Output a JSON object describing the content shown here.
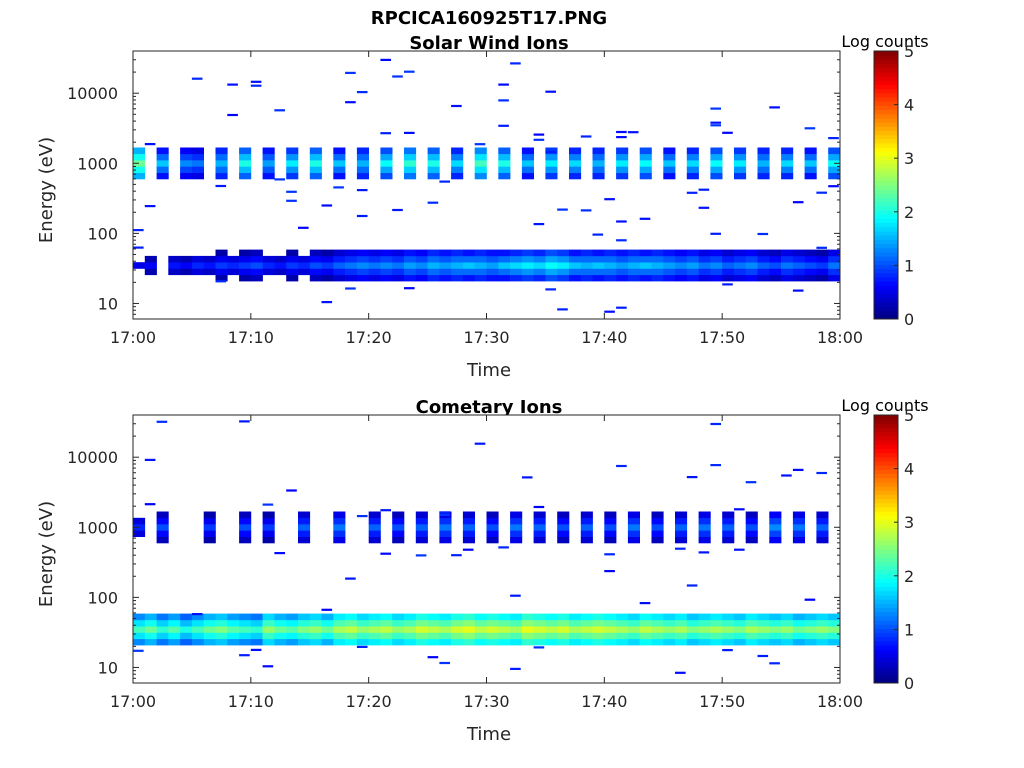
{
  "figure": {
    "filename": "RPCICA160925T17.PNG"
  },
  "colorbar": {
    "label": "Log counts",
    "ticks": [
      "0",
      "1",
      "2",
      "3",
      "4",
      "5"
    ],
    "range": [
      0,
      5
    ],
    "colormap": "jet"
  },
  "chart_data": [
    {
      "type": "heatmap",
      "title": "Solar Wind Ions",
      "xlabel": "Time",
      "ylabel": "Energy (eV)",
      "xticks": [
        "17:00",
        "17:10",
        "17:20",
        "17:30",
        "17:40",
        "17:50",
        "18:00"
      ],
      "xlim": [
        "17:00",
        "18:00"
      ],
      "yscale": "log",
      "ylim": [
        6,
        40000
      ],
      "yticks": [
        "10",
        "100",
        "1000",
        "10000"
      ],
      "time_resolution_s": 60,
      "bands": [
        {
          "energy_eV": 1000,
          "peak_log_counts": [
            2.4,
            0,
            1.6,
            0,
            1.3,
            1.2,
            0,
            1.5,
            0,
            2.0,
            0,
            1.4,
            0,
            1.8,
            0,
            2.0,
            0,
            1.6,
            0,
            1.5,
            0,
            1.9,
            0,
            2.1,
            0,
            2.0,
            0,
            1.7,
            0,
            2.2,
            0,
            2.0,
            0,
            1.6,
            0,
            1.8,
            0,
            1.7,
            0,
            1.5,
            0,
            1.8,
            0,
            1.9,
            0,
            1.6,
            0,
            1.7,
            0,
            1.9,
            0,
            1.8,
            0,
            1.5,
            0,
            1.7,
            0,
            1.6,
            0,
            1.9
          ]
        },
        {
          "energy_eV": 35,
          "peak_log_counts": [
            0.5,
            0.6,
            0,
            0.7,
            0.6,
            0.8,
            0.7,
            0.9,
            0.8,
            0.9,
            1.0,
            0.8,
            0.7,
            0.9,
            0.8,
            1.0,
            0.9,
            1.1,
            1.2,
            1.3,
            1.2,
            1.3,
            1.2,
            1.4,
            1.3,
            1.5,
            1.4,
            1.5,
            1.6,
            1.5,
            1.4,
            1.6,
            1.7,
            1.8,
            1.7,
            1.9,
            1.8,
            1.6,
            1.5,
            1.6,
            1.5,
            1.4,
            1.5,
            1.6,
            1.5,
            1.4,
            1.3,
            1.4,
            1.2,
            1.3,
            1.1,
            1.2,
            1.3,
            1.1,
            1.0,
            1.2,
            1.1,
            1.0,
            0.9,
            1.2
          ]
        }
      ],
      "scatter_counts_level": 0.6
    },
    {
      "type": "heatmap",
      "title": "Cometary Ions",
      "xlabel": "Time",
      "ylabel": "Energy (eV)",
      "xticks": [
        "17:00",
        "17:10",
        "17:20",
        "17:30",
        "17:40",
        "17:50",
        "18:00"
      ],
      "xlim": [
        "17:00",
        "18:00"
      ],
      "yscale": "log",
      "ylim": [
        6,
        40000
      ],
      "yticks": [
        "10",
        "100",
        "1000",
        "10000"
      ],
      "time_resolution_s": 60,
      "bands": [
        {
          "energy_eV": 1000,
          "peak_log_counts": [
            0.8,
            0,
            1.0,
            0,
            0,
            0,
            0.9,
            0,
            0,
            1.0,
            0,
            0.9,
            0,
            0,
            1.1,
            0,
            0,
            1.2,
            0,
            0,
            1.1,
            0,
            1.0,
            0,
            1.1,
            0,
            1.2,
            0,
            1.1,
            0,
            1.0,
            0,
            1.2,
            0,
            1.1,
            0,
            1.0,
            0,
            1.1,
            0,
            1.0,
            0,
            1.2,
            0,
            1.0,
            0,
            1.1,
            0,
            1.2,
            0,
            1.1,
            0,
            1.0,
            0,
            1.3,
            0,
            1.2,
            0,
            1.1,
            0
          ]
        },
        {
          "energy_eV": 35,
          "peak_log_counts": [
            2.2,
            2.4,
            2.1,
            2.3,
            2.0,
            2.2,
            2.4,
            2.5,
            2.3,
            2.2,
            2.1,
            2.6,
            2.4,
            2.3,
            2.5,
            2.6,
            2.4,
            2.7,
            2.8,
            2.6,
            2.7,
            2.8,
            2.6,
            2.7,
            2.9,
            2.8,
            2.7,
            2.9,
            3.0,
            2.8,
            2.9,
            2.8,
            2.7,
            3.0,
            2.9,
            2.8,
            2.9,
            2.7,
            2.8,
            2.9,
            2.8,
            2.7,
            2.6,
            2.8,
            2.7,
            2.6,
            2.7,
            2.5,
            2.6,
            2.7,
            2.6,
            2.5,
            2.7,
            2.6,
            2.5,
            2.6,
            2.4,
            2.5,
            2.6,
            2.5
          ]
        }
      ],
      "scatter_counts_level": 0.6
    }
  ]
}
